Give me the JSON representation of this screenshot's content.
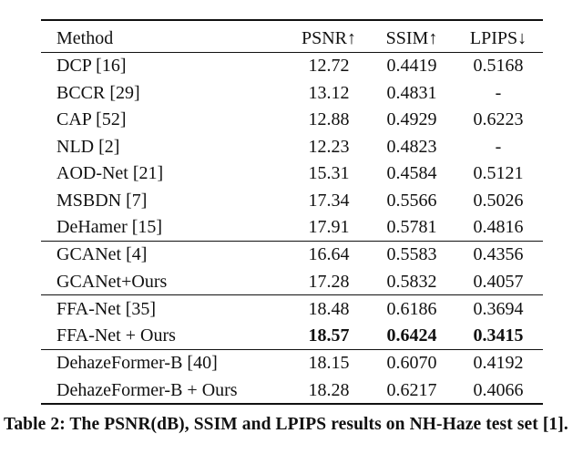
{
  "table": {
    "header": [
      "Method",
      "PSNR↑",
      "SSIM↑",
      "LPIPS↓"
    ],
    "groups": [
      [
        [
          "DCP [16]",
          "12.72",
          "0.4419",
          "0.5168"
        ],
        [
          "BCCR [29]",
          "13.12",
          "0.4831",
          "-"
        ],
        [
          "CAP [52]",
          "12.88",
          "0.4929",
          "0.6223"
        ],
        [
          "NLD [2]",
          "12.23",
          "0.4823",
          "-"
        ],
        [
          "AOD-Net [21]",
          "15.31",
          "0.4584",
          "0.5121"
        ],
        [
          "MSBDN [7]",
          "17.34",
          "0.5566",
          "0.5026"
        ],
        [
          "DeHamer [15]",
          "17.91",
          "0.5781",
          "0.4816"
        ]
      ],
      [
        [
          "GCANet [4]",
          "16.64",
          "0.5583",
          "0.4356"
        ],
        [
          "GCANet+Ours",
          "17.28",
          "0.5832",
          "0.4057"
        ]
      ],
      [
        [
          "FFA-Net [35]",
          "18.48",
          "0.6186",
          "0.3694"
        ],
        [
          "FFA-Net + Ours",
          "18.57",
          "0.6424",
          "0.3415"
        ]
      ],
      [
        [
          "DehazeFormer-B [40]",
          "18.15",
          "0.6070",
          "0.4192"
        ],
        [
          "DehazeFormer-B + Ours",
          "18.28",
          "0.6217",
          "0.4066"
        ]
      ]
    ],
    "caption": "Table 2: The PSNR(dB), SSIM and LPIPS results on NH-Haze test set [1]."
  }
}
